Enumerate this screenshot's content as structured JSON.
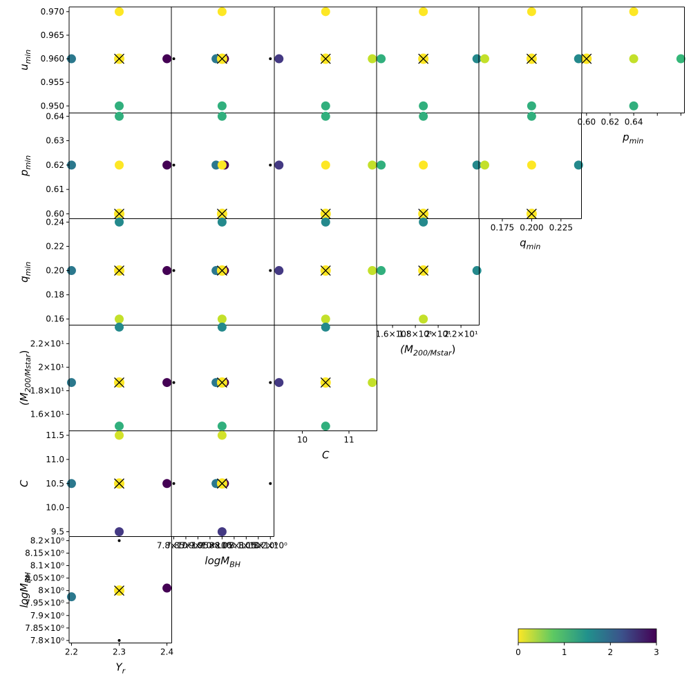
{
  "chart_data": {
    "type": "scatter",
    "title": "",
    "layout": "corner-plot",
    "diagonal_panels": "empty",
    "best_point_marker": "x",
    "colormap": "viridis_r",
    "colorbar": {
      "min": 0,
      "max": 3,
      "ticks": [
        "0",
        "1",
        "2",
        "3"
      ],
      "placement": "bottom-right",
      "orientation": "horizontal"
    },
    "grid": false,
    "parameters": [
      {
        "key": "Yr",
        "axis_label": "Y_r",
        "sub": "r",
        "base": "Y",
        "range": [
          2.195,
          2.41
        ],
        "ticks": [
          "2.2",
          "2.3",
          "2.4"
        ],
        "tick_values": [
          2.2,
          2.3,
          2.4
        ],
        "grid_values": [
          2.2,
          2.3,
          2.4
        ],
        "best": 2.3
      },
      {
        "key": "logMBH",
        "axis_label": "logM_BH",
        "sub": "BH",
        "base": "logM",
        "range": [
          7.79,
          8.215
        ],
        "ticks": [
          "7.8×10⁰",
          "7.85×10⁰",
          "7.9×10⁰",
          "7.95×10⁰",
          "8×10⁰",
          "8.05×10⁰",
          "8.1×10⁰",
          "8.15×10⁰",
          "8.2×10⁰"
        ],
        "tick_values": [
          7.8,
          7.85,
          7.9,
          7.95,
          8.0,
          8.05,
          8.1,
          8.15,
          8.2
        ],
        "grid_values": [
          7.8,
          8.0,
          8.2
        ],
        "best": 8.0,
        "log_axis": true
      },
      {
        "key": "C",
        "axis_label": "C",
        "sub": "",
        "base": "C",
        "range": [
          9.4,
          11.6
        ],
        "ticks": [
          "9.5",
          "10.0",
          "10.5",
          "11.0",
          "11.5"
        ],
        "tick_values": [
          9.5,
          10.0,
          10.5,
          11.0,
          11.5
        ],
        "grid_values": [
          9.5,
          10.5,
          11.5
        ],
        "best": 10.5
      },
      {
        "key": "M200",
        "axis_label": "(M_200/M_star)",
        "sub": "200/M",
        "base": "(M",
        "range": [
          14.6,
          23.6
        ],
        "ticks": [
          "1.6×10¹",
          "1.8×10¹",
          "2×10¹",
          "2.2×10¹"
        ],
        "tick_values": [
          16,
          18,
          20,
          22
        ],
        "grid_values": [
          15,
          18.7,
          23.4
        ],
        "best": 18.7,
        "log_axis": true
      },
      {
        "key": "qmin",
        "axis_label": "q_min",
        "sub": "min",
        "base": "q",
        "range": [
          0.155,
          0.2425
        ],
        "ticks": [
          "0.16",
          "0.18",
          "0.20",
          "0.22",
          "0.24"
        ],
        "tick_values": [
          0.16,
          0.18,
          0.2,
          0.22,
          0.24
        ],
        "grid_values": [
          0.16,
          0.2,
          0.24
        ],
        "best": 0.2
      },
      {
        "key": "pmin",
        "axis_label": "p_min",
        "sub": "min",
        "base": "p",
        "range": [
          0.598,
          0.6415
        ],
        "ticks": [
          "0.60",
          "0.61",
          "0.62",
          "0.63",
          "0.64"
        ],
        "tick_values": [
          0.6,
          0.61,
          0.62,
          0.63,
          0.64
        ],
        "grid_values": [
          0.6,
          0.62,
          0.64
        ],
        "best": 0.6
      },
      {
        "key": "umin",
        "axis_label": "u_min",
        "sub": "min",
        "base": "u",
        "range": [
          0.9485,
          0.971
        ],
        "ticks": [
          "0.950",
          "0.955",
          "0.960",
          "0.965",
          "0.970"
        ],
        "tick_values": [
          0.95,
          0.955,
          0.96,
          0.965,
          0.97
        ],
        "grid_values": [
          0.95,
          0.96,
          0.97
        ],
        "best": 0.96
      }
    ],
    "column_ticks": {
      "Yr": [
        "2.2",
        "2.3",
        "2.4"
      ],
      "logMBH": [
        "7.8×10⁰",
        "7.85×10⁰",
        "7.9×10⁰",
        "7.95×10⁰",
        "8×10⁰",
        "8.05×10⁰",
        "8.1×10⁰",
        "8.15×10⁰",
        "8.2×10⁰"
      ],
      "C": [
        "10",
        "11"
      ],
      "M200": [
        "1.6×10¹",
        "1.8×10¹",
        "2×10¹",
        "2.2×10¹"
      ],
      "qmin": [
        "0.175",
        "0.200",
        "0.225"
      ],
      "pmin": [
        "0.60",
        "0.62",
        "0.64"
      ]
    },
    "row_ticks": {
      "umin": [
        "0.950",
        "0.955",
        "0.960",
        "0.965",
        "0.970"
      ],
      "pmin": [
        "0.60",
        "0.61",
        "0.62",
        "0.63",
        "0.64"
      ],
      "qmin": [
        "0.16",
        "0.18",
        "0.20",
        "0.22",
        "0.24"
      ],
      "M200": [
        "1.6×10¹",
        "1.8×10¹",
        "2×10¹",
        "2.2×10¹"
      ],
      "C": [
        "9.5",
        "10.0",
        "10.5",
        "11.0",
        "11.5"
      ],
      "logMBH": [
        "7.8×10⁰",
        "7.85×10⁰",
        "7.9×10⁰",
        "7.95×10⁰",
        "8×10⁰",
        "8.05×10⁰",
        "8.1×10⁰",
        "8.15×10⁰",
        "8.2×10⁰"
      ]
    },
    "panels": [
      {
        "row": "logMBH",
        "col": "Yr",
        "points": [
          [
            2.2,
            7.975,
            1.8
          ],
          [
            2.4,
            8.01,
            3.0
          ],
          [
            2.3,
            8.2,
            null
          ],
          [
            2.3,
            7.8,
            null
          ]
        ],
        "best": [
          2.3,
          8.0
        ]
      },
      {
        "row": "C",
        "col": "Yr",
        "points": [
          [
            2.2,
            10.5,
            1.8
          ],
          [
            2.4,
            10.5,
            3.0
          ],
          [
            2.3,
            11.5,
            0.3
          ],
          [
            2.3,
            9.5,
            2.5
          ]
        ],
        "best": [
          2.3,
          10.5
        ]
      },
      {
        "row": "C",
        "col": "logMBH",
        "points": [
          [
            7.8,
            10.5,
            null
          ],
          [
            7.975,
            10.5,
            1.8
          ],
          [
            8.01,
            10.5,
            3.0
          ],
          [
            8.2,
            10.5,
            null
          ],
          [
            8.0,
            11.5,
            0.3
          ],
          [
            8.0,
            9.5,
            2.5
          ]
        ],
        "best": [
          8.0,
          10.5
        ]
      },
      {
        "row": "M200",
        "col": "Yr",
        "points": [
          [
            2.2,
            18.7,
            1.8
          ],
          [
            2.4,
            18.7,
            3.0
          ],
          [
            2.3,
            23.4,
            1.6
          ],
          [
            2.3,
            15.0,
            1.1
          ]
        ],
        "best": [
          2.3,
          18.7
        ]
      },
      {
        "row": "M200",
        "col": "logMBH",
        "points": [
          [
            7.8,
            18.7,
            null
          ],
          [
            7.975,
            18.7,
            1.8
          ],
          [
            8.01,
            18.7,
            3.0
          ],
          [
            8.2,
            18.7,
            null
          ],
          [
            8.0,
            23.4,
            1.6
          ],
          [
            8.0,
            15.0,
            1.1
          ]
        ],
        "best": [
          8.0,
          18.7
        ]
      },
      {
        "row": "M200",
        "col": "C",
        "points": [
          [
            9.5,
            18.7,
            2.5
          ],
          [
            11.5,
            18.7,
            0.4
          ],
          [
            10.5,
            23.4,
            1.6
          ],
          [
            10.5,
            15.0,
            1.1
          ]
        ],
        "best": [
          10.5,
          18.7
        ]
      },
      {
        "row": "qmin",
        "col": "Yr",
        "points": [
          [
            2.2,
            0.2,
            1.8
          ],
          [
            2.4,
            0.2,
            3.0
          ],
          [
            2.3,
            0.24,
            1.6
          ],
          [
            2.3,
            0.16,
            0.4
          ]
        ],
        "best": [
          2.3,
          0.2
        ]
      },
      {
        "row": "qmin",
        "col": "logMBH",
        "points": [
          [
            7.8,
            0.2,
            null
          ],
          [
            7.975,
            0.2,
            1.8
          ],
          [
            8.01,
            0.2,
            3.0
          ],
          [
            8.2,
            0.2,
            null
          ],
          [
            8.0,
            0.24,
            1.6
          ],
          [
            8.0,
            0.16,
            0.4
          ]
        ],
        "best": [
          8.0,
          0.2
        ]
      },
      {
        "row": "qmin",
        "col": "C",
        "points": [
          [
            9.5,
            0.2,
            2.5
          ],
          [
            11.5,
            0.2,
            0.4
          ],
          [
            10.5,
            0.24,
            1.6
          ],
          [
            10.5,
            0.16,
            0.4
          ]
        ],
        "best": [
          10.5,
          0.2
        ]
      },
      {
        "row": "qmin",
        "col": "M200",
        "points": [
          [
            15.0,
            0.2,
            1.1
          ],
          [
            23.4,
            0.2,
            1.6
          ],
          [
            18.7,
            0.24,
            1.6
          ],
          [
            18.7,
            0.16,
            0.4
          ]
        ],
        "best": [
          18.7,
          0.2
        ]
      },
      {
        "row": "pmin",
        "col": "Yr",
        "points": [
          [
            2.2,
            0.62,
            1.8
          ],
          [
            2.4,
            0.62,
            3.0
          ],
          [
            2.3,
            0.64,
            1.1
          ],
          [
            2.3,
            0.62,
            0.0
          ]
        ],
        "best": [
          2.3,
          0.6
        ]
      },
      {
        "row": "pmin",
        "col": "logMBH",
        "points": [
          [
            7.8,
            0.62,
            null
          ],
          [
            7.975,
            0.62,
            1.8
          ],
          [
            8.01,
            0.62,
            3.0
          ],
          [
            8.2,
            0.62,
            null
          ],
          [
            8.0,
            0.64,
            1.1
          ],
          [
            8.0,
            0.62,
            0.0
          ]
        ],
        "best": [
          8.0,
          0.6
        ]
      },
      {
        "row": "pmin",
        "col": "C",
        "points": [
          [
            9.5,
            0.62,
            2.5
          ],
          [
            11.5,
            0.62,
            0.4
          ],
          [
            10.5,
            0.64,
            1.1
          ],
          [
            10.5,
            0.62,
            0.0
          ]
        ],
        "best": [
          10.5,
          0.6
        ]
      },
      {
        "row": "pmin",
        "col": "M200",
        "points": [
          [
            15.0,
            0.62,
            1.1
          ],
          [
            23.4,
            0.62,
            1.6
          ],
          [
            18.7,
            0.64,
            1.1
          ],
          [
            18.7,
            0.62,
            0.0
          ]
        ],
        "best": [
          18.7,
          0.6
        ]
      },
      {
        "row": "pmin",
        "col": "qmin",
        "points": [
          [
            0.16,
            0.62,
            0.4
          ],
          [
            0.24,
            0.62,
            1.6
          ],
          [
            0.2,
            0.64,
            1.1
          ],
          [
            0.2,
            0.62,
            0.0
          ]
        ],
        "best": [
          0.2,
          0.6
        ]
      },
      {
        "row": "umin",
        "col": "Yr",
        "points": [
          [
            2.2,
            0.96,
            1.8
          ],
          [
            2.4,
            0.96,
            3.0
          ],
          [
            2.3,
            0.97,
            0.0
          ],
          [
            2.3,
            0.95,
            1.1
          ]
        ],
        "best": [
          2.3,
          0.96
        ]
      },
      {
        "row": "umin",
        "col": "logMBH",
        "points": [
          [
            7.8,
            0.96,
            null
          ],
          [
            7.975,
            0.96,
            1.8
          ],
          [
            8.01,
            0.96,
            3.0
          ],
          [
            8.2,
            0.96,
            null
          ],
          [
            8.0,
            0.97,
            0.0
          ],
          [
            8.0,
            0.95,
            1.1
          ]
        ],
        "best": [
          8.0,
          0.96
        ]
      },
      {
        "row": "umin",
        "col": "C",
        "points": [
          [
            9.5,
            0.96,
            2.5
          ],
          [
            11.5,
            0.96,
            0.4
          ],
          [
            10.5,
            0.97,
            0.0
          ],
          [
            10.5,
            0.95,
            1.1
          ]
        ],
        "best": [
          10.5,
          0.96
        ]
      },
      {
        "row": "umin",
        "col": "M200",
        "points": [
          [
            15.0,
            0.96,
            1.1
          ],
          [
            23.4,
            0.96,
            1.6
          ],
          [
            18.7,
            0.97,
            0.0
          ],
          [
            18.7,
            0.95,
            1.1
          ]
        ],
        "best": [
          18.7,
          0.96
        ]
      },
      {
        "row": "umin",
        "col": "qmin",
        "points": [
          [
            0.16,
            0.96,
            0.4
          ],
          [
            0.24,
            0.96,
            1.6
          ],
          [
            0.2,
            0.97,
            0.0
          ],
          [
            0.2,
            0.95,
            1.1
          ]
        ],
        "best": [
          0.2,
          0.96
        ]
      },
      {
        "row": "umin",
        "col": "pmin",
        "points": [
          [
            0.6,
            0.96,
            null
          ],
          [
            0.62,
            0.96,
            0.4
          ],
          [
            0.64,
            0.96,
            1.0
          ],
          [
            0.62,
            0.97,
            0.0
          ],
          [
            0.62,
            0.95,
            1.1
          ]
        ],
        "best": [
          0.6,
          0.96
        ]
      }
    ]
  }
}
